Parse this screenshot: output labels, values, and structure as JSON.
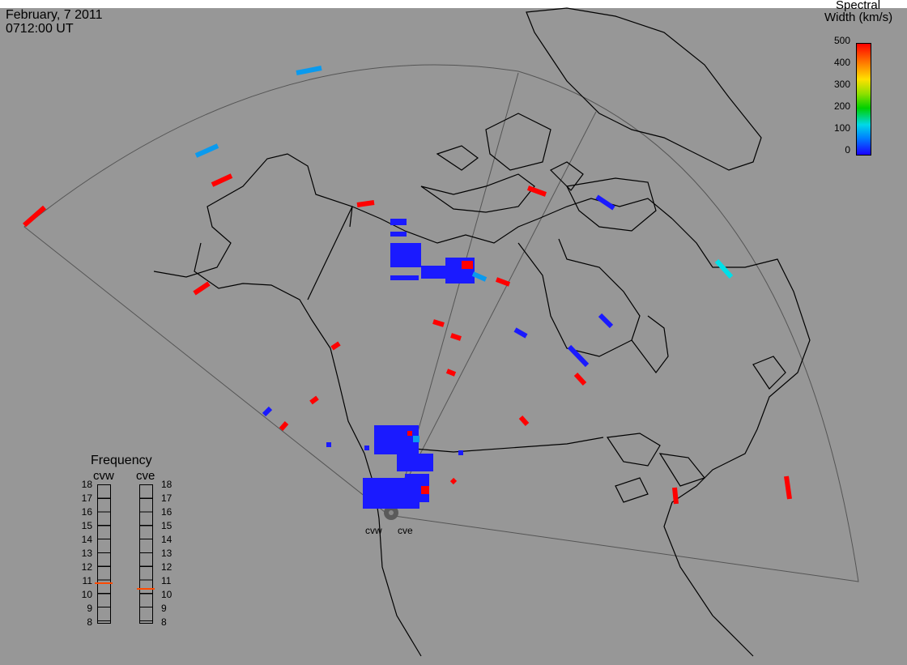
{
  "header": {
    "date": "February, 7 2011",
    "time": "0712:00 UT"
  },
  "legend": {
    "title_line1": "Spectral",
    "title_line2": "Width (km/s)",
    "ticks": [
      "500",
      "400",
      "300",
      "200",
      "100",
      "0"
    ],
    "min": 0,
    "max": 500
  },
  "frequency_panel": {
    "title": "Frequency",
    "radars": [
      "cvw",
      "cve"
    ],
    "ticks": [
      "18",
      "17",
      "16",
      "15",
      "14",
      "13",
      "12",
      "11",
      "10",
      "9",
      "8"
    ],
    "current_cvw_mhz": 10.9,
    "current_cve_mhz": 10.5,
    "marker_color": "#ff4a00"
  },
  "sites": [
    "cvw",
    "cve"
  ],
  "colors": {
    "background": "#979797",
    "coastline": "#000000",
    "fov_outline": "#555555",
    "low_width": "#1a1aff",
    "mid_width": "#0a9aee",
    "cyan_width": "#00e0e8",
    "high_width": "#ff0000"
  }
}
